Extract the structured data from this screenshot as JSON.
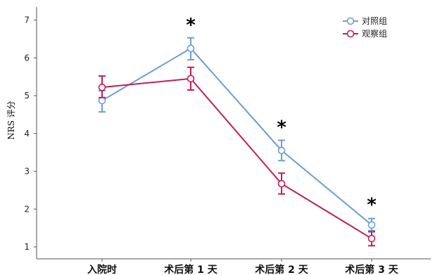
{
  "chart_data": {
    "type": "line",
    "title": "",
    "xlabel": "",
    "ylabel": "NRS 评分",
    "categories": [
      "入院时",
      "术后第 1 天",
      "术后第 2 天",
      "术后第 3 天"
    ],
    "ylim": [
      0.8,
      7.3
    ],
    "yticks": [
      1,
      2,
      3,
      4,
      5,
      6,
      7
    ],
    "grid": false,
    "legend_position": "top-right",
    "series": [
      {
        "name": "对照组",
        "color": "#6a9fd6",
        "values": [
          4.87,
          6.25,
          3.55,
          1.58
        ],
        "err_low": [
          4.57,
          5.95,
          3.28,
          1.43
        ],
        "err_high": [
          5.13,
          6.53,
          3.82,
          1.75
        ]
      },
      {
        "name": "观察组",
        "color": "#c21e54",
        "values": [
          5.22,
          5.45,
          2.67,
          1.22
        ],
        "err_low": [
          4.95,
          5.15,
          2.4,
          1.03
        ],
        "err_high": [
          5.52,
          5.75,
          2.95,
          1.4
        ]
      }
    ],
    "annotations": [
      {
        "text": "*",
        "category": "术后第 1 天",
        "y": 6.95
      },
      {
        "text": "*",
        "category": "术后第 2 天",
        "y": 4.25
      },
      {
        "text": "*",
        "category": "术后第 3 天",
        "y": 2.2
      }
    ]
  }
}
